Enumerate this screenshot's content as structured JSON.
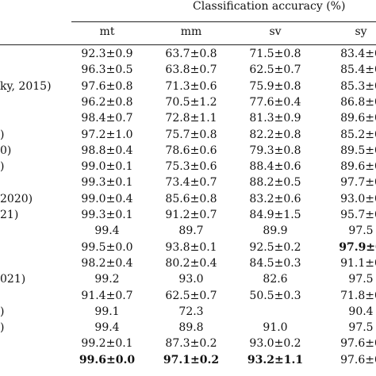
{
  "header": {
    "group_title": "Classification accuracy (%)",
    "columns": [
      "mt",
      "mm",
      "sv",
      "sy"
    ]
  },
  "rows": [
    {
      "label": "",
      "cells": [
        "92.3±0.9",
        "63.7±0.8",
        "71.5±0.8",
        "83.4±0"
      ],
      "bold": [
        false,
        false,
        false,
        false
      ]
    },
    {
      "label": "",
      "cells": [
        "96.3±0.5",
        "63.8±0.7",
        "62.5±0.7",
        "85.4±0"
      ],
      "bold": [
        false,
        false,
        false,
        false
      ]
    },
    {
      "label": "ky, 2015)",
      "cells": [
        "97.6±0.8",
        "71.3±0.6",
        "75.9±0.8",
        "85.3±0"
      ],
      "bold": [
        false,
        false,
        false,
        false
      ]
    },
    {
      "label": "",
      "cells": [
        "96.2±0.8",
        "70.5±1.2",
        "77.6±0.4",
        "86.8±0"
      ],
      "bold": [
        false,
        false,
        false,
        false
      ]
    },
    {
      "label": "",
      "cells": [
        "98.4±0.7",
        "72.8±1.1",
        "81.3±0.9",
        "89.6±0"
      ],
      "bold": [
        false,
        false,
        false,
        false
      ]
    },
    {
      "label": ")",
      "cells": [
        "97.2±1.0",
        "75.7±0.8",
        "82.2±0.8",
        "85.2±0"
      ],
      "bold": [
        false,
        false,
        false,
        false
      ]
    },
    {
      "label": "0)",
      "cells": [
        "98.8±0.4",
        "78.6±0.6",
        "79.3±0.8",
        "89.5±0"
      ],
      "bold": [
        false,
        false,
        false,
        false
      ]
    },
    {
      "label": ")",
      "cells": [
        "99.0±0.1",
        "75.3±0.6",
        "88.4±0.6",
        "89.6±0"
      ],
      "bold": [
        false,
        false,
        false,
        false
      ]
    },
    {
      "label": "",
      "cells": [
        "99.3±0.1",
        "73.4±0.7",
        "88.2±0.5",
        "97.7±0"
      ],
      "bold": [
        false,
        false,
        false,
        false
      ]
    },
    {
      "label": " 2020)",
      "cells": [
        "99.0±0.4",
        "85.6±0.8",
        "83.2±0.6",
        "93.0±0"
      ],
      "bold": [
        false,
        false,
        false,
        false
      ]
    },
    {
      "label": "21)",
      "cells": [
        "99.3±0.1",
        "91.2±0.7",
        "84.9±1.5",
        "95.7±0"
      ],
      "bold": [
        false,
        false,
        false,
        false
      ]
    },
    {
      "label": "",
      "cells": [
        "99.4",
        "89.7",
        "89.9",
        "97.5"
      ],
      "bold": [
        false,
        false,
        false,
        false
      ]
    },
    {
      "label": "",
      "cells": [
        "99.5±0.0",
        "93.8±0.1",
        "92.5±0.2",
        "97.9±0"
      ],
      "bold": [
        false,
        false,
        false,
        true
      ]
    },
    {
      "label": "",
      "cells": [
        "98.2±0.4",
        "80.2±0.4",
        "84.5±0.3",
        "91.1±0"
      ],
      "bold": [
        false,
        false,
        false,
        false
      ]
    },
    {
      "label": "021)",
      "cells": [
        "99.2",
        "93.0",
        "82.6",
        "97.5"
      ],
      "bold": [
        false,
        false,
        false,
        false
      ]
    },
    {
      "label": "",
      "cells": [
        "91.4±0.7",
        "62.5±0.7",
        "50.5±0.3",
        "71.8±0"
      ],
      "bold": [
        false,
        false,
        false,
        false
      ]
    },
    {
      "label": ")",
      "cells": [
        "99.1",
        "72.3",
        "",
        "90.4"
      ],
      "bold": [
        false,
        false,
        false,
        false
      ]
    },
    {
      "label": ")",
      "cells": [
        "99.4",
        "89.8",
        "91.0",
        "97.5"
      ],
      "bold": [
        false,
        false,
        false,
        false
      ]
    },
    {
      "label": "",
      "cells": [
        "99.2±0.1",
        "87.3±0.2",
        "93.0±0.2",
        "97.6±0"
      ],
      "bold": [
        false,
        false,
        false,
        false
      ]
    },
    {
      "label": "",
      "cells": [
        "99.6±0.0",
        "97.1±0.2",
        "93.2±1.1",
        "97.6±0"
      ],
      "bold": [
        true,
        true,
        true,
        false
      ]
    }
  ]
}
